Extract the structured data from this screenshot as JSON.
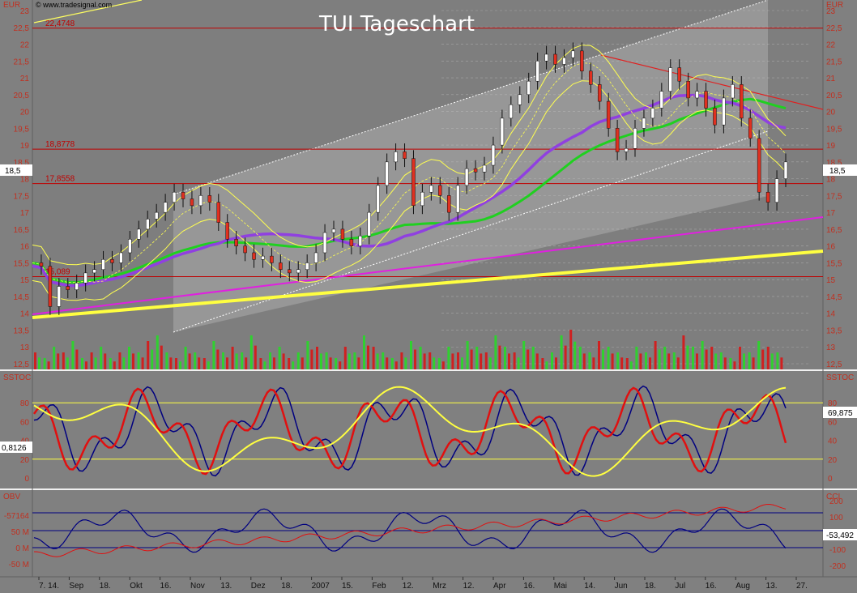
{
  "title": "TUI Tageschart",
  "copyright": "© www.tradesignal.com",
  "currency_left": "EUR",
  "currency_right": "EUR",
  "chart_data": {
    "type": "candlestick",
    "title": "TUI Tageschart",
    "price_axis": {
      "min": 12.5,
      "max": 23,
      "step": 0.5
    },
    "price_ticks": [
      "23",
      "22,5",
      "22",
      "21,5",
      "21",
      "20,5",
      "20",
      "19,5",
      "19",
      "18,5",
      "18",
      "17,5",
      "17",
      "16,5",
      "16",
      "15,5",
      "15",
      "14,5",
      "14",
      "13,5",
      "13",
      "12,5"
    ],
    "levels": [
      {
        "value": 22.4748,
        "label": "22,4748"
      },
      {
        "value": 18.8778,
        "label": "18,8778"
      },
      {
        "value": 17.8558,
        "label": "17,8558"
      },
      {
        "value": 15.089,
        "label": "15,089"
      }
    ],
    "current_price": {
      "value": 18.5,
      "label": "18,5"
    },
    "x_labels": [
      "7. 14.",
      "Sep",
      "18.",
      "Okt",
      "16.",
      "Nov",
      "13.",
      "Dez",
      "18.",
      "2007",
      "15.",
      "Feb",
      "12.",
      "Mrz",
      "12.",
      "Apr",
      "16.",
      "Mai",
      "14.",
      "Jun",
      "18.",
      "Jul",
      "16.",
      "Aug",
      "13.",
      "27."
    ],
    "close_points": [
      [
        0,
        15.5
      ],
      [
        3,
        15.4
      ],
      [
        6,
        14.2
      ],
      [
        9,
        14.8
      ],
      [
        12,
        14.7
      ],
      [
        15,
        14.9
      ],
      [
        18,
        15.2
      ],
      [
        21,
        15.3
      ],
      [
        24,
        15.6
      ],
      [
        27,
        15.5
      ],
      [
        30,
        15.8
      ],
      [
        33,
        16.2
      ],
      [
        36,
        16.5
      ],
      [
        39,
        16.8
      ],
      [
        42,
        17.0
      ],
      [
        45,
        17.3
      ],
      [
        48,
        17.6
      ],
      [
        51,
        17.4
      ],
      [
        54,
        17.2
      ],
      [
        57,
        17.5
      ],
      [
        60,
        17.3
      ],
      [
        63,
        16.7
      ],
      [
        66,
        16.2
      ],
      [
        69,
        16.0
      ],
      [
        72,
        15.8
      ],
      [
        75,
        15.6
      ],
      [
        78,
        15.7
      ],
      [
        81,
        15.5
      ],
      [
        84,
        15.3
      ],
      [
        87,
        15.2
      ],
      [
        90,
        15.3
      ],
      [
        93,
        15.5
      ],
      [
        96,
        15.8
      ],
      [
        99,
        16.4
      ],
      [
        102,
        16.5
      ],
      [
        105,
        16.2
      ],
      [
        108,
        16.0
      ],
      [
        111,
        16.3
      ],
      [
        114,
        17.0
      ],
      [
        117,
        17.8
      ],
      [
        120,
        18.5
      ],
      [
        123,
        18.8
      ],
      [
        126,
        18.6
      ],
      [
        129,
        17.2
      ],
      [
        132,
        17.6
      ],
      [
        135,
        17.8
      ],
      [
        138,
        17.5
      ],
      [
        141,
        17.0
      ],
      [
        144,
        17.8
      ],
      [
        147,
        18.3
      ],
      [
        150,
        18.2
      ],
      [
        153,
        18.4
      ],
      [
        156,
        19.0
      ],
      [
        159,
        19.8
      ],
      [
        162,
        20.2
      ],
      [
        165,
        20.5
      ],
      [
        168,
        20.9
      ],
      [
        171,
        21.5
      ],
      [
        174,
        21.7
      ],
      [
        177,
        21.4
      ],
      [
        180,
        21.6
      ],
      [
        183,
        21.8
      ],
      [
        186,
        21.2
      ],
      [
        189,
        20.8
      ],
      [
        192,
        20.3
      ],
      [
        195,
        19.5
      ],
      [
        198,
        18.8
      ],
      [
        201,
        18.9
      ],
      [
        204,
        19.5
      ],
      [
        207,
        19.8
      ],
      [
        210,
        20.1
      ],
      [
        213,
        20.6
      ],
      [
        216,
        21.3
      ],
      [
        219,
        20.9
      ],
      [
        222,
        20.4
      ],
      [
        225,
        20.6
      ],
      [
        228,
        20.1
      ],
      [
        231,
        19.6
      ],
      [
        234,
        20.4
      ],
      [
        237,
        20.8
      ],
      [
        240,
        19.8
      ],
      [
        243,
        19.2
      ],
      [
        246,
        17.6
      ],
      [
        249,
        17.3
      ],
      [
        252,
        18.0
      ],
      [
        255,
        18.5
      ]
    ],
    "volume_bars": [
      3,
      2,
      4,
      3,
      5,
      2,
      3,
      4,
      2,
      3,
      4,
      3,
      5,
      6,
      3,
      2,
      4,
      3,
      2,
      5,
      3,
      4,
      3,
      6,
      2,
      3,
      4,
      2,
      3,
      5,
      4,
      3,
      2,
      4,
      3,
      6,
      4,
      3,
      2,
      3,
      5,
      4,
      3,
      2,
      4,
      3,
      5,
      4,
      3,
      6,
      4,
      3,
      5,
      4,
      2,
      3,
      6,
      7,
      4,
      3,
      5,
      4,
      3,
      2,
      4,
      3,
      5,
      4,
      3,
      6,
      4,
      5,
      4,
      3,
      2,
      4,
      3,
      5,
      4,
      3
    ],
    "sstoc": {
      "label": "SSTOC",
      "ticks": [
        "80",
        "60",
        "40",
        "20",
        "0"
      ],
      "levels": [
        80,
        20
      ],
      "current": "69,875",
      "left_value": "0,8126"
    },
    "obv_cci": {
      "left_label": "OBV",
      "right_label": "CCI",
      "left_ticks": [
        "-57164",
        "50 M",
        "0 M",
        "-50 M"
      ],
      "right_ticks": [
        "200",
        "100",
        "0",
        "-100",
        "-200"
      ],
      "current": "-53,492"
    }
  }
}
